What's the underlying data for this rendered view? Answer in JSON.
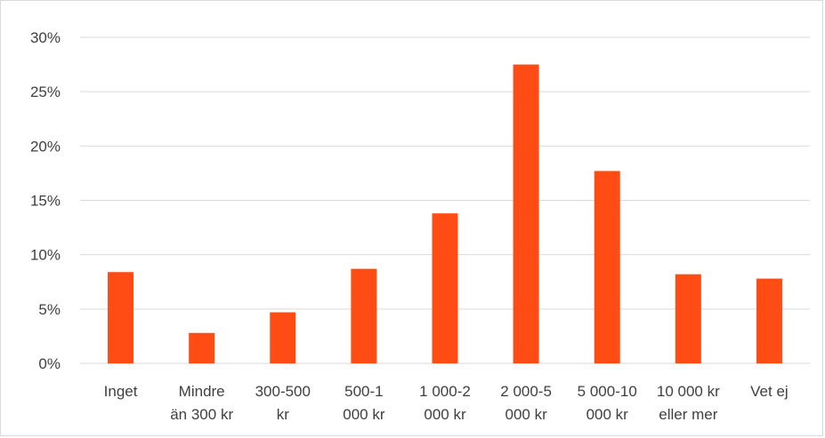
{
  "chart_data": {
    "type": "bar",
    "title": "",
    "xlabel": "",
    "ylabel": "",
    "categories": [
      [
        "Inget"
      ],
      [
        "Mindre",
        "än 300 kr"
      ],
      [
        "300-500",
        "kr"
      ],
      [
        "500-1",
        "000 kr"
      ],
      [
        "1 000-2",
        "000 kr"
      ],
      [
        "2 000-5",
        "000 kr"
      ],
      [
        "5 000-10",
        "000 kr"
      ],
      [
        "10 000 kr",
        "eller mer"
      ],
      [
        "Vet ej"
      ]
    ],
    "values": [
      8.4,
      2.8,
      4.7,
      8.7,
      13.8,
      27.5,
      17.7,
      8.2,
      7.8
    ],
    "ylim": [
      0,
      30
    ],
    "yticks": [
      0,
      5,
      10,
      15,
      20,
      25,
      30
    ],
    "ytick_labels": [
      "0%",
      "5%",
      "10%",
      "15%",
      "20%",
      "25%",
      "30%"
    ],
    "grid": true,
    "bar_color": "#FF4B14",
    "grid_color": "#D9D9D9",
    "text_color": "#404040"
  }
}
